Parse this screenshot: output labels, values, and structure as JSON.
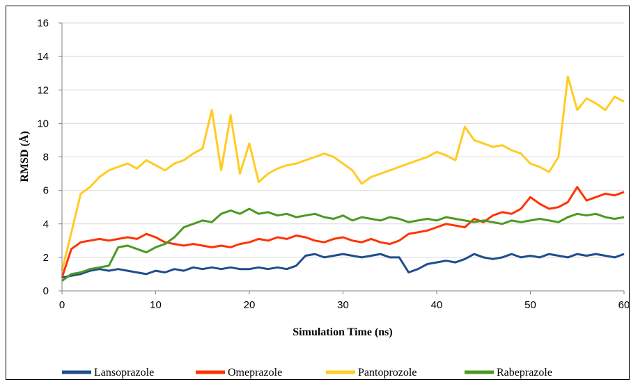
{
  "chart_data": {
    "type": "line",
    "xlabel": "Simulation Time (ns)",
    "ylabel": "RMSD (Å)",
    "xlim": [
      0,
      60
    ],
    "ylim": [
      0,
      16
    ],
    "x_ticks": [
      0,
      10,
      20,
      30,
      40,
      50,
      60
    ],
    "y_ticks": [
      0,
      2,
      4,
      6,
      8,
      10,
      12,
      14,
      16
    ],
    "grid": "horizontal",
    "legend_position": "bottom",
    "series": [
      {
        "name": "Lansoprazole",
        "color": "#1f4e8c",
        "points": [
          [
            0,
            0.8
          ],
          [
            1,
            0.9
          ],
          [
            2,
            1.0
          ],
          [
            3,
            1.2
          ],
          [
            4,
            1.3
          ],
          [
            5,
            1.2
          ],
          [
            6,
            1.3
          ],
          [
            7,
            1.2
          ],
          [
            8,
            1.1
          ],
          [
            9,
            1.0
          ],
          [
            10,
            1.2
          ],
          [
            11,
            1.1
          ],
          [
            12,
            1.3
          ],
          [
            13,
            1.2
          ],
          [
            14,
            1.4
          ],
          [
            15,
            1.3
          ],
          [
            16,
            1.4
          ],
          [
            17,
            1.3
          ],
          [
            18,
            1.4
          ],
          [
            19,
            1.3
          ],
          [
            20,
            1.3
          ],
          [
            21,
            1.4
          ],
          [
            22,
            1.3
          ],
          [
            23,
            1.4
          ],
          [
            24,
            1.3
          ],
          [
            25,
            1.5
          ],
          [
            26,
            2.1
          ],
          [
            27,
            2.2
          ],
          [
            28,
            2.0
          ],
          [
            29,
            2.1
          ],
          [
            30,
            2.2
          ],
          [
            31,
            2.1
          ],
          [
            32,
            2.0
          ],
          [
            33,
            2.1
          ],
          [
            34,
            2.2
          ],
          [
            35,
            2.0
          ],
          [
            36,
            2.0
          ],
          [
            37,
            1.1
          ],
          [
            38,
            1.3
          ],
          [
            39,
            1.6
          ],
          [
            40,
            1.7
          ],
          [
            41,
            1.8
          ],
          [
            42,
            1.7
          ],
          [
            43,
            1.9
          ],
          [
            44,
            2.2
          ],
          [
            45,
            2.0
          ],
          [
            46,
            1.9
          ],
          [
            47,
            2.0
          ],
          [
            48,
            2.2
          ],
          [
            49,
            2.0
          ],
          [
            50,
            2.1
          ],
          [
            51,
            2.0
          ],
          [
            52,
            2.2
          ],
          [
            53,
            2.1
          ],
          [
            54,
            2.0
          ],
          [
            55,
            2.2
          ],
          [
            56,
            2.1
          ],
          [
            57,
            2.2
          ],
          [
            58,
            2.1
          ],
          [
            59,
            2.0
          ],
          [
            60,
            2.2
          ]
        ]
      },
      {
        "name": "Omeprazole",
        "color": "#ff3300",
        "points": [
          [
            0,
            0.8
          ],
          [
            1,
            2.5
          ],
          [
            2,
            2.9
          ],
          [
            3,
            3.0
          ],
          [
            4,
            3.1
          ],
          [
            5,
            3.0
          ],
          [
            6,
            3.1
          ],
          [
            7,
            3.2
          ],
          [
            8,
            3.1
          ],
          [
            9,
            3.4
          ],
          [
            10,
            3.2
          ],
          [
            11,
            2.9
          ],
          [
            12,
            2.8
          ],
          [
            13,
            2.7
          ],
          [
            14,
            2.8
          ],
          [
            15,
            2.7
          ],
          [
            16,
            2.6
          ],
          [
            17,
            2.7
          ],
          [
            18,
            2.6
          ],
          [
            19,
            2.8
          ],
          [
            20,
            2.9
          ],
          [
            21,
            3.1
          ],
          [
            22,
            3.0
          ],
          [
            23,
            3.2
          ],
          [
            24,
            3.1
          ],
          [
            25,
            3.3
          ],
          [
            26,
            3.2
          ],
          [
            27,
            3.0
          ],
          [
            28,
            2.9
          ],
          [
            29,
            3.1
          ],
          [
            30,
            3.2
          ],
          [
            31,
            3.0
          ],
          [
            32,
            2.9
          ],
          [
            33,
            3.1
          ],
          [
            34,
            2.9
          ],
          [
            35,
            2.8
          ],
          [
            36,
            3.0
          ],
          [
            37,
            3.4
          ],
          [
            38,
            3.5
          ],
          [
            39,
            3.6
          ],
          [
            40,
            3.8
          ],
          [
            41,
            4.0
          ],
          [
            42,
            3.9
          ],
          [
            43,
            3.8
          ],
          [
            44,
            4.3
          ],
          [
            45,
            4.1
          ],
          [
            46,
            4.5
          ],
          [
            47,
            4.7
          ],
          [
            48,
            4.6
          ],
          [
            49,
            4.9
          ],
          [
            50,
            5.6
          ],
          [
            51,
            5.2
          ],
          [
            52,
            4.9
          ],
          [
            53,
            5.0
          ],
          [
            54,
            5.3
          ],
          [
            55,
            6.2
          ],
          [
            56,
            5.4
          ],
          [
            57,
            5.6
          ],
          [
            58,
            5.8
          ],
          [
            59,
            5.7
          ],
          [
            60,
            5.9
          ]
        ]
      },
      {
        "name": "Pantoprozole",
        "color": "#ffcc22",
        "points": [
          [
            0,
            1.2
          ],
          [
            1,
            3.5
          ],
          [
            2,
            5.8
          ],
          [
            3,
            6.2
          ],
          [
            4,
            6.8
          ],
          [
            5,
            7.2
          ],
          [
            6,
            7.4
          ],
          [
            7,
            7.6
          ],
          [
            8,
            7.3
          ],
          [
            9,
            7.8
          ],
          [
            10,
            7.5
          ],
          [
            11,
            7.2
          ],
          [
            12,
            7.6
          ],
          [
            13,
            7.8
          ],
          [
            14,
            8.2
          ],
          [
            15,
            8.5
          ],
          [
            16,
            10.8
          ],
          [
            17,
            7.2
          ],
          [
            18,
            10.5
          ],
          [
            19,
            7.0
          ],
          [
            20,
            8.8
          ],
          [
            21,
            6.5
          ],
          [
            22,
            7.0
          ],
          [
            23,
            7.3
          ],
          [
            24,
            7.5
          ],
          [
            25,
            7.6
          ],
          [
            26,
            7.8
          ],
          [
            27,
            8.0
          ],
          [
            28,
            8.2
          ],
          [
            29,
            8.0
          ],
          [
            30,
            7.6
          ],
          [
            31,
            7.2
          ],
          [
            32,
            6.4
          ],
          [
            33,
            6.8
          ],
          [
            34,
            7.0
          ],
          [
            35,
            7.2
          ],
          [
            36,
            7.4
          ],
          [
            37,
            7.6
          ],
          [
            38,
            7.8
          ],
          [
            39,
            8.0
          ],
          [
            40,
            8.3
          ],
          [
            41,
            8.1
          ],
          [
            42,
            7.8
          ],
          [
            43,
            9.8
          ],
          [
            44,
            9.0
          ],
          [
            45,
            8.8
          ],
          [
            46,
            8.6
          ],
          [
            47,
            8.7
          ],
          [
            48,
            8.4
          ],
          [
            49,
            8.2
          ],
          [
            50,
            7.6
          ],
          [
            51,
            7.4
          ],
          [
            52,
            7.1
          ],
          [
            53,
            8.0
          ],
          [
            54,
            12.8
          ],
          [
            55,
            10.8
          ],
          [
            56,
            11.5
          ],
          [
            57,
            11.2
          ],
          [
            58,
            10.8
          ],
          [
            59,
            11.6
          ],
          [
            60,
            11.3
          ]
        ]
      },
      {
        "name": "Rabeprazole",
        "color": "#4a9a22",
        "points": [
          [
            0,
            0.6
          ],
          [
            1,
            1.0
          ],
          [
            2,
            1.1
          ],
          [
            3,
            1.3
          ],
          [
            4,
            1.4
          ],
          [
            5,
            1.5
          ],
          [
            6,
            2.6
          ],
          [
            7,
            2.7
          ],
          [
            8,
            2.5
          ],
          [
            9,
            2.3
          ],
          [
            10,
            2.6
          ],
          [
            11,
            2.8
          ],
          [
            12,
            3.2
          ],
          [
            13,
            3.8
          ],
          [
            14,
            4.0
          ],
          [
            15,
            4.2
          ],
          [
            16,
            4.1
          ],
          [
            17,
            4.6
          ],
          [
            18,
            4.8
          ],
          [
            19,
            4.6
          ],
          [
            20,
            4.9
          ],
          [
            21,
            4.6
          ],
          [
            22,
            4.7
          ],
          [
            23,
            4.5
          ],
          [
            24,
            4.6
          ],
          [
            25,
            4.4
          ],
          [
            26,
            4.5
          ],
          [
            27,
            4.6
          ],
          [
            28,
            4.4
          ],
          [
            29,
            4.3
          ],
          [
            30,
            4.5
          ],
          [
            31,
            4.2
          ],
          [
            32,
            4.4
          ],
          [
            33,
            4.3
          ],
          [
            34,
            4.2
          ],
          [
            35,
            4.4
          ],
          [
            36,
            4.3
          ],
          [
            37,
            4.1
          ],
          [
            38,
            4.2
          ],
          [
            39,
            4.3
          ],
          [
            40,
            4.2
          ],
          [
            41,
            4.4
          ],
          [
            42,
            4.3
          ],
          [
            43,
            4.2
          ],
          [
            44,
            4.1
          ],
          [
            45,
            4.2
          ],
          [
            46,
            4.1
          ],
          [
            47,
            4.0
          ],
          [
            48,
            4.2
          ],
          [
            49,
            4.1
          ],
          [
            50,
            4.2
          ],
          [
            51,
            4.3
          ],
          [
            52,
            4.2
          ],
          [
            53,
            4.1
          ],
          [
            54,
            4.4
          ],
          [
            55,
            4.6
          ],
          [
            56,
            4.5
          ],
          [
            57,
            4.6
          ],
          [
            58,
            4.4
          ],
          [
            59,
            4.3
          ],
          [
            60,
            4.4
          ]
        ]
      }
    ]
  }
}
